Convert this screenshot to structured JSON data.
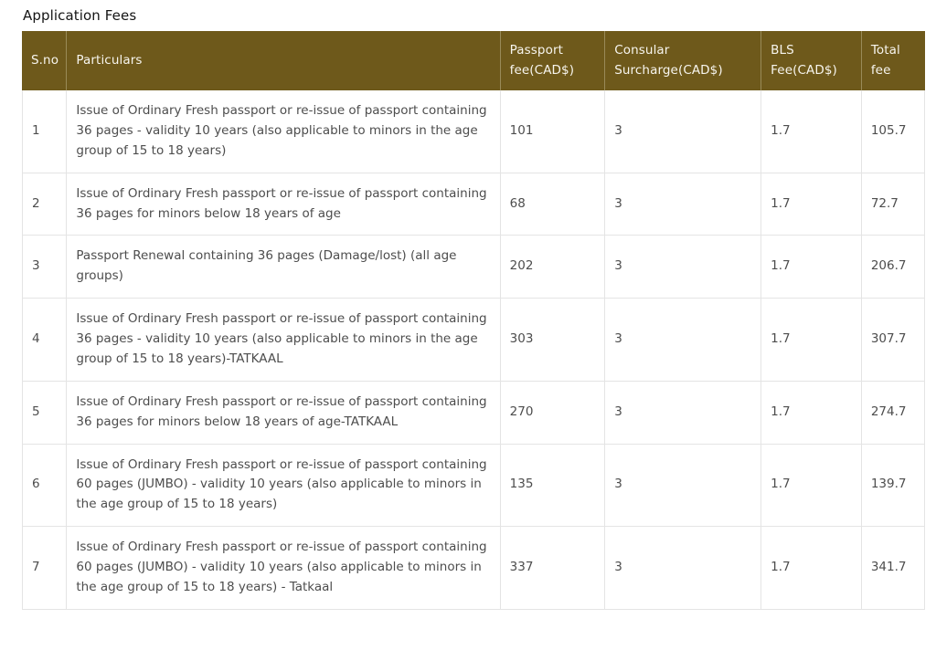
{
  "page": {
    "title": "Application Fees"
  },
  "colors": {
    "header_bg": "#6e591b",
    "header_text": "#f7f5ee",
    "header_divider": "#998a58",
    "body_text": "#4d4d4d",
    "row_border": "#e4e4e4",
    "title_text": "#151515",
    "page_bg": "#ffffff"
  },
  "table": {
    "columns": [
      {
        "label": "S.no"
      },
      {
        "label": "Particulars"
      },
      {
        "label": "Passport fee(CAD$)"
      },
      {
        "label": "Consular Surcharge(CAD$)"
      },
      {
        "label": "BLS Fee(CAD$)"
      },
      {
        "label": "Total fee"
      }
    ],
    "rows": [
      {
        "sno": "1",
        "particulars": "Issue of Ordinary Fresh passport or re-issue of passport containing 36 pages - validity 10 years (also applicable to minors in the age group of 15 to 18 years)",
        "passport_fee": "101",
        "consular_surcharge": "3",
        "bls_fee": "1.7",
        "total_fee": "105.7"
      },
      {
        "sno": "2",
        "particulars": "Issue of Ordinary Fresh passport or re-issue of passport containing 36 pages for minors below 18 years of age",
        "passport_fee": "68",
        "consular_surcharge": "3",
        "bls_fee": "1.7",
        "total_fee": "72.7"
      },
      {
        "sno": "3",
        "particulars": "Passport Renewal containing 36 pages (Damage/lost) (all age groups)",
        "passport_fee": "202",
        "consular_surcharge": "3",
        "bls_fee": "1.7",
        "total_fee": "206.7"
      },
      {
        "sno": "4",
        "particulars": "Issue of Ordinary Fresh passport or re-issue of passport containing 36 pages - validity 10 years (also applicable to minors in the age group of 15 to 18 years)-TATKAAL",
        "passport_fee": "303",
        "consular_surcharge": "3",
        "bls_fee": "1.7",
        "total_fee": "307.7"
      },
      {
        "sno": "5",
        "particulars": "Issue of Ordinary Fresh passport or re-issue of passport containing 36 pages for minors below 18 years of age-TATKAAL",
        "passport_fee": "270",
        "consular_surcharge": "3",
        "bls_fee": "1.7",
        "total_fee": "274.7"
      },
      {
        "sno": "6",
        "particulars": "Issue of Ordinary Fresh passport or re-issue of passport containing 60 pages (JUMBO) - validity 10 years (also applicable to minors in the age group of 15 to 18 years)",
        "passport_fee": "135",
        "consular_surcharge": "3",
        "bls_fee": "1.7",
        "total_fee": "139.7"
      },
      {
        "sno": "7",
        "particulars": "Issue of Ordinary Fresh passport or re-issue of passport containing 60 pages (JUMBO) - validity 10 years (also applicable to minors in the age group of 15 to 18 years) - Tatkaal",
        "passport_fee": "337",
        "consular_surcharge": "3",
        "bls_fee": "1.7",
        "total_fee": "341.7"
      }
    ]
  }
}
